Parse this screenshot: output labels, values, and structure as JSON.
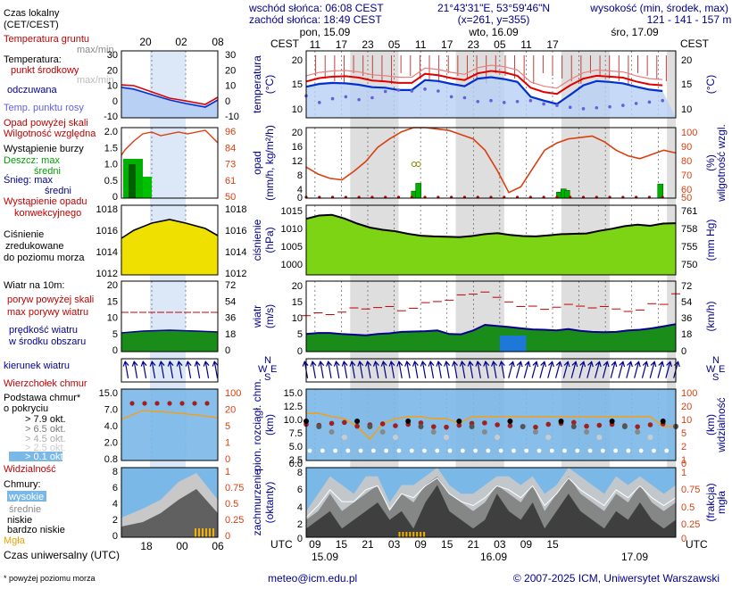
{
  "header": {
    "local_time_label": "Czas lokalny\n(CET/CEST)",
    "sunrise": "wschód słońca: 06:08 CEST",
    "sunset": "zachód słońca: 18:49 CEST",
    "coords": "21°43'31\"E, 53°59'46\"N",
    "grid": "(x=261,  y=355)",
    "elevation_label": "wysokość (min, środek, max)",
    "elevation_values": "121 - 141 - 157 m",
    "day_labels": [
      "pon, 15.09",
      "wto, 16.09",
      "śro, 17.09"
    ],
    "tz_left": "CEST",
    "tz_right": "CEST",
    "small_hours": [
      "20",
      "02",
      "08"
    ],
    "main_hours": [
      "11",
      "17",
      "23",
      "05",
      "11",
      "17",
      "23",
      "05",
      "11",
      "17"
    ]
  },
  "footer": {
    "utc_label": "Czas uniwersalny (UTC)",
    "small_hours": [
      "18",
      "00",
      "06"
    ],
    "utc_left": "UTC",
    "utc_right": "UTC",
    "main_hours": [
      "09",
      "15",
      "21",
      "03",
      "09",
      "15",
      "21",
      "03",
      "09",
      "15"
    ],
    "dates": [
      "15.09",
      "16.09",
      "17.09"
    ],
    "note": "* powyżej poziomu morza",
    "email": "meteo@icm.edu.pl",
    "copyright": "© 2007-2025 ICM, Uniwersytet Warszawski"
  },
  "legend": {
    "temp": [
      "Temperatura gruntu",
      "max/min",
      "Temperatura:",
      "punkt środkowy",
      "max/min",
      "odczuwana",
      "Temp. punktu rosy"
    ],
    "precip": [
      "Opad powyżej skali",
      "Wilgotność względna",
      "Wystąpienie burzy",
      "Deszcz: max",
      "średni",
      "Śnieg: max",
      "średni",
      "Wystąpienie opadu",
      "konwekcyjnego"
    ],
    "pressure": [
      "Ciśnienie",
      "zredukowane",
      "do poziomu morza"
    ],
    "wind": [
      "Wiatr na 10m:",
      "poryw powyżej skali",
      "max porywy wiatru",
      "prędkość wiatru",
      "w środku obszaru"
    ],
    "direction": [
      "kierunek wiatru"
    ],
    "cloudbase": [
      "Wierzchołek chmur",
      "Podstawa chmur*",
      "o pokryciu",
      "> 7.9 okt.",
      "> 6.5 okt.",
      "> 4.5 okt.",
      "> 2.5 okt.",
      "> 0.1 okt.",
      "Widzialność"
    ],
    "clouds": [
      "Chmury:",
      "wysokie",
      "średnie",
      "niskie",
      "bardzo niskie",
      "Mgła"
    ]
  },
  "axes": {
    "temp": {
      "left_title": "temperatura",
      "left_unit": "(°C)",
      "right_unit": "(°C)",
      "left_ticks": [
        "20",
        "15",
        "10"
      ],
      "right_ticks": [
        "20",
        "15",
        "10"
      ],
      "mini_left": [
        "30",
        "20",
        "10",
        "0",
        "-10"
      ],
      "mini_right": [
        "30",
        "20",
        "10",
        "0",
        "-10"
      ]
    },
    "precip": {
      "left_title": "opad",
      "left_unit": "(mm/h, kg/m²/h)",
      "right_title": "wilgotność wzgl.",
      "right_unit": "(%)",
      "left_ticks": [
        "20",
        "16",
        "12",
        "8",
        "4",
        "0"
      ],
      "right_ticks": [
        "100",
        "90",
        "80",
        "70",
        "60",
        "50"
      ],
      "mini_left": [
        "2.0",
        "1.5",
        "1.0",
        "0.5",
        "0"
      ],
      "mini_right": [
        "96",
        "84",
        "73",
        "61",
        "50"
      ]
    },
    "pressure": {
      "left_title": "ciśnienie",
      "left_unit": "(hPa)",
      "right_unit": "(mm Hg)",
      "left_ticks": [
        "1015",
        "1010",
        "1005",
        "1000"
      ],
      "right_ticks": [
        "761",
        "758",
        "755",
        "750"
      ],
      "mini_left": [
        "1018",
        "1016",
        "1014",
        "1012"
      ],
      "mini_right": [
        "1018",
        "1016",
        "1014",
        "1012"
      ]
    },
    "wind": {
      "left_title": "wiatr",
      "left_unit": "(m/s)",
      "right_unit": "(km/h)",
      "left_ticks": [
        "20",
        "15",
        "10",
        "5",
        "0"
      ],
      "right_ticks": [
        "72",
        "54",
        "36",
        "18",
        "0"
      ],
      "mini_left": [
        "20",
        "15",
        "10",
        "5",
        "0"
      ],
      "mini_right": [
        "72",
        "54",
        "36",
        "18",
        "0"
      ]
    },
    "direction": {
      "compass": [
        "N",
        "W",
        "E",
        "S"
      ]
    },
    "cloudbase": {
      "left_title": "pion. rozciągł. chm.",
      "left_unit": "(km)",
      "right_title": "widzialność",
      "right_unit": "(km)",
      "left_ticks": [
        "15.0",
        "12.5",
        "10.0",
        "7.5",
        "5.0",
        "2.5",
        "0.0"
      ],
      "right_ticks": [
        "100",
        "20",
        "10",
        "5",
        "2",
        "1",
        "0"
      ],
      "mini_left": [
        "15.0",
        "7.0",
        "4.0",
        "2.0",
        "0.8"
      ],
      "mini_right": [
        "100",
        "20",
        "5",
        "1",
        "0"
      ]
    },
    "clouds": {
      "left_title": "zachmurzenie",
      "left_unit": "(oktanty)",
      "right_title": "mgła",
      "right_unit": "(frakcja)",
      "left_ticks": [
        "8",
        "6",
        "4",
        "2",
        "0"
      ],
      "right_ticks": [
        "1",
        "0.75",
        "0.5",
        "0.25",
        "0"
      ],
      "mini_left": [
        "8",
        "6",
        "4",
        "2",
        "0"
      ],
      "mini_right": [
        "1",
        "0.75",
        "0.5",
        "0.25",
        "0"
      ]
    }
  },
  "colors": {
    "temp_mid": "#e00000",
    "temp_feel": "#0030d0",
    "dew_point": "#6060e0",
    "humidity": "#d84010",
    "rain": "#00b000",
    "pressure_fill": "#7cd414",
    "gust": "#c00000",
    "wind_fill": "#1a8c1a",
    "cloud_layer": "#7ab8e8",
    "visibility": "#f0a020",
    "night_shade": "#d8d8d8",
    "fog": "#f4b000"
  },
  "chart_data": [
    {
      "panel": "temperatura",
      "type": "line",
      "x_hours_from_start": [
        0,
        3,
        6,
        9,
        12,
        15,
        18,
        21,
        24,
        27,
        30,
        33,
        36,
        39,
        42,
        45,
        48,
        51,
        54,
        57,
        60,
        63,
        66,
        69,
        72,
        75,
        78,
        81
      ],
      "series": [
        {
          "name": "punkt środkowy",
          "values": [
            15.6,
            16.3,
            16.6,
            16.7,
            16.4,
            15.8,
            15.6,
            15.3,
            15.3,
            17.2,
            16.9,
            16.3,
            15.9,
            17.3,
            17.8,
            17.5,
            16.8,
            14.3,
            13.4,
            13.0,
            14.8,
            16.2,
            16.8,
            16.6,
            16.4,
            15.6,
            15.0,
            14.8
          ]
        },
        {
          "name": "odczuwana",
          "values": [
            14.5,
            15.1,
            15.3,
            15.2,
            14.9,
            14.4,
            14.3,
            13.8,
            13.8,
            15.9,
            15.7,
            15.1,
            14.6,
            16.2,
            16.5,
            16.1,
            15.5,
            12.4,
            11.6,
            10.9,
            12.8,
            14.8,
            15.7,
            15.5,
            15.2,
            14.5,
            13.9,
            13.6
          ]
        },
        {
          "name": "Temp. punktu rosy",
          "values": [
            12.6,
            11.2,
            12.0,
            12.4,
            11.8,
            12.2,
            13.5,
            13.8,
            13.6,
            14.0,
            13.6,
            12.4,
            12.2,
            11.4,
            11.6,
            11.2,
            11.4,
            11.6,
            10.9,
            10.6,
            10.2,
            9.9,
            10.1,
            10.3,
            10.6,
            11.0,
            11.3,
            11.6
          ]
        }
      ],
      "ylim": [
        8,
        22
      ],
      "ylabel": "temperatura (°C)"
    },
    {
      "panel": "opad",
      "type": "bar+line",
      "rain_bars": [
        {
          "hour": 24.5,
          "value": 2.0
        },
        {
          "hour": 25.5,
          "value": 4.2
        },
        {
          "hour": 57.5,
          "value": 1.7
        },
        {
          "hour": 58.5,
          "value": 2.6
        },
        {
          "hour": 59.3,
          "value": 2.2
        },
        {
          "hour": 80.5,
          "value": 4.0
        }
      ],
      "storm_hours": [
        24.5,
        25.5
      ],
      "humidity": [
        72,
        67,
        64,
        63,
        69,
        76,
        86,
        92,
        97,
        100,
        100,
        99,
        98,
        95,
        92,
        84,
        70,
        54,
        58,
        71,
        84,
        89,
        92,
        93,
        94,
        90,
        84,
        80,
        78,
        81,
        84,
        82
      ],
      "ylim": [
        0,
        20
      ],
      "y2lim": [
        50,
        100
      ],
      "ylabel": "opad (mm/h, kg/m²/h)",
      "y2label": "wilgotność wzgl. (%)"
    },
    {
      "panel": "ciśnienie",
      "type": "area",
      "values": [
        1013.3,
        1014.2,
        1014.4,
        1013.4,
        1012.0,
        1010.9,
        1010.3,
        1009.9,
        1009.2,
        1008.7,
        1008.5,
        1008.4,
        1008.3,
        1008.6,
        1009.1,
        1009.4,
        1008.9,
        1008.6,
        1008.5,
        1008.8,
        1009.1,
        1009.2,
        1009.3,
        1010.0,
        1010.6,
        1011.3,
        1011.7,
        1011.4,
        1012.0,
        1012.1
      ],
      "ylim": [
        998,
        1017
      ],
      "ylabel": "ciśnienie (hPa)"
    },
    {
      "panel": "wiatr",
      "type": "area+dashes",
      "speed": [
        5.0,
        5.3,
        5.3,
        5.0,
        4.8,
        4.6,
        5.0,
        5.2,
        5.6,
        5.7,
        5.8,
        6.0,
        5.0,
        4.9,
        6.0,
        7.6,
        7.3,
        7.0,
        6.6,
        6.3,
        6.2,
        6.0,
        6.4,
        5.9,
        5.6,
        5.5,
        5.6,
        6.0,
        6.2,
        6.6,
        7.2,
        7.8
      ],
      "gusts": [
        10.2,
        11.0,
        10.5,
        11.2,
        12.4,
        12.1,
        12.5,
        12.8,
        11.6,
        12.3,
        13.9,
        14.2,
        14.6,
        16.1,
        16.3,
        16.9,
        15.4,
        14.1,
        12.8,
        12.9,
        12.0,
        12.6,
        13.4,
        12.9,
        12.4,
        12.8,
        12.1,
        11.4,
        11.8,
        13.6,
        13.4,
        16.4
      ],
      "ylim": [
        0,
        20
      ],
      "ylabel": "wiatr (m/s)"
    },
    {
      "panel": "widzialność",
      "type": "scatter+line",
      "cloud_top_km": [
        7.6,
        7.4,
        7.8,
        8.0,
        7.2,
        7.5,
        7.7,
        7.3,
        7.6,
        7.9,
        7.1,
        7.0,
        7.4,
        7.8,
        7.9,
        7.5,
        7.3,
        7.1,
        7.0,
        7.6,
        7.8,
        8.0,
        7.2,
        7.4,
        7.6,
        7.3,
        7.1,
        7.5,
        7.7,
        7.2
      ],
      "visibility_km": [
        20,
        20,
        16,
        14,
        8,
        3,
        10,
        14,
        16,
        16,
        14,
        14,
        10,
        16,
        16,
        16,
        16,
        16,
        16,
        16,
        16,
        16,
        16,
        16,
        16,
        16,
        16,
        16,
        8,
        8
      ],
      "ylim": [
        0,
        15
      ],
      "ylabel": "pion. rozciągł. chm. (km)",
      "y2label": "widzialność (km)"
    },
    {
      "panel": "zachmurzenie",
      "type": "area",
      "low": [
        1,
        2,
        3,
        1,
        2,
        3,
        4,
        2,
        3,
        1,
        4,
        6,
        3,
        2,
        1,
        2,
        5,
        3,
        2,
        4,
        1,
        3,
        5,
        3,
        2,
        1,
        3,
        2,
        4,
        2,
        1,
        2
      ],
      "mid": [
        2,
        3,
        5,
        3,
        4,
        5,
        6,
        3,
        5,
        4,
        6,
        7,
        5,
        4,
        3,
        4,
        6,
        5,
        4,
        6,
        3,
        5,
        7,
        5,
        4,
        3,
        5,
        4,
        6,
        4,
        3,
        4
      ],
      "high": [
        3,
        5,
        7,
        6,
        5,
        7,
        7,
        4,
        6,
        6,
        7,
        8,
        6,
        5,
        5,
        6,
        7,
        7,
        6,
        7,
        5,
        6,
        8,
        7,
        6,
        5,
        7,
        6,
        7,
        6,
        5,
        6
      ],
      "ylim": [
        0,
        8
      ],
      "ylabel": "zachmurzenie (oktanty)",
      "y2label": "mgła (frakcja)"
    }
  ]
}
